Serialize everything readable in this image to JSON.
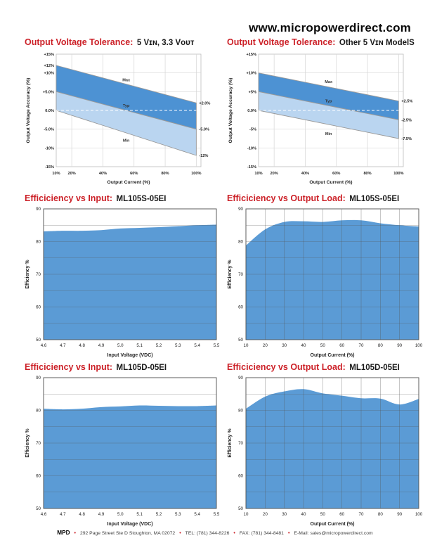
{
  "header": {
    "website": "www.micropowerdirect.com"
  },
  "colors": {
    "accent_red": "#cc2128",
    "band_upper": "#4d92d3",
    "band_lower": "#bad5f0",
    "efficiency_fill": "#5b9bd5",
    "grid_light": "#d6d6d6",
    "band_edge": "#999999"
  },
  "chart_data": [
    {
      "id": "tolerance-5vin-3v3out",
      "type": "area",
      "kind": "tolerance-band",
      "title_accent": "Output Voltage Tolerance:",
      "title_rest": "5 Vɪɴ, 3.3 Vᴏᴜᴛ",
      "xlabel": "Output Current (%)",
      "ylabel": "Output Voltage Accuracy (%)",
      "xlim": [
        10,
        103
      ],
      "ylim": [
        -15,
        15
      ],
      "xticks": [
        {
          "v": 10,
          "label": "10%"
        },
        {
          "v": 20,
          "label": "20%"
        },
        {
          "v": 40,
          "label": "40%"
        },
        {
          "v": 60,
          "label": "60%"
        },
        {
          "v": 80,
          "label": "80%"
        },
        {
          "v": 100,
          "label": "100%"
        }
      ],
      "yticks": [
        {
          "v": 15,
          "label": "+15%",
          "grid": false
        },
        {
          "v": 12,
          "label": "+12%",
          "grid": false
        },
        {
          "v": 10,
          "label": "+10%",
          "grid": true
        },
        {
          "v": 5,
          "label": "+5.0%",
          "grid": true
        },
        {
          "v": 0,
          "label": "0.0%",
          "grid": false
        },
        {
          "v": -5,
          "label": "-5.0%",
          "grid": true
        },
        {
          "v": -10,
          "label": "-10%",
          "grid": true
        },
        {
          "v": -15,
          "label": "-15%",
          "grid": false
        }
      ],
      "zero_line_dashed": true,
      "series": [
        {
          "name": "Max",
          "x": [
            10,
            100
          ],
          "values": [
            12,
            2
          ],
          "end_label": "+2.0%",
          "name_label_at": {
            "x": 55,
            "y": 7.8
          }
        },
        {
          "name": "Typ",
          "x": [
            10,
            100
          ],
          "values": [
            5,
            -5
          ],
          "end_label": "-5.0%",
          "name_label_at": {
            "x": 55,
            "y": 0.9
          }
        },
        {
          "name": "Min",
          "x": [
            10,
            100
          ],
          "values": [
            0,
            -12
          ],
          "end_label": "-12%",
          "name_label_at": {
            "x": 55,
            "y": -8.3
          }
        }
      ]
    },
    {
      "id": "tolerance-other-5vin",
      "type": "area",
      "kind": "tolerance-band",
      "title_accent": "Output Voltage Tolerance:",
      "title_rest": "Other 5 Vɪɴ ModelS",
      "xlabel": "Output Current (%)",
      "ylabel": "Output Voltage Accuracy (%)",
      "xlim": [
        10,
        103
      ],
      "ylim": [
        -15,
        15
      ],
      "xticks": [
        {
          "v": 10,
          "label": "10%"
        },
        {
          "v": 20,
          "label": "20%"
        },
        {
          "v": 40,
          "label": "40%"
        },
        {
          "v": 60,
          "label": "60%"
        },
        {
          "v": 80,
          "label": "80%"
        },
        {
          "v": 100,
          "label": "100%"
        }
      ],
      "yticks": [
        {
          "v": 15,
          "label": "+15%",
          "grid": false
        },
        {
          "v": 10,
          "label": "+10%",
          "grid": true
        },
        {
          "v": 5,
          "label": "+5%",
          "grid": true
        },
        {
          "v": 0,
          "label": "0.0%",
          "grid": false
        },
        {
          "v": -5,
          "label": "-5%",
          "grid": true
        },
        {
          "v": -10,
          "label": "-10%",
          "grid": true
        },
        {
          "v": -15,
          "label": "-15%",
          "grid": false
        }
      ],
      "zero_line_dashed": true,
      "series": [
        {
          "name": "Max",
          "x": [
            10,
            100
          ],
          "values": [
            10,
            2.5
          ],
          "end_label": "+2.5%",
          "name_label_at": {
            "x": 55,
            "y": 7.3
          }
        },
        {
          "name": "Typ",
          "x": [
            10,
            100
          ],
          "values": [
            5,
            -2.5
          ],
          "end_label": "-2.5%",
          "name_label_at": {
            "x": 55,
            "y": 2.2
          }
        },
        {
          "name": "Min",
          "x": [
            10,
            100
          ],
          "values": [
            0,
            -7.5
          ],
          "end_label": "-7.5%",
          "name_label_at": {
            "x": 55,
            "y": -6.6
          }
        }
      ]
    },
    {
      "id": "efficiency-vs-input-ml105s-05ei",
      "type": "area",
      "kind": "efficiency",
      "title_accent": "Efficiciency vs Input:",
      "title_rest": "ML105S-05EI",
      "xlabel": "Input Voltage (VDC)",
      "ylabel": "Efficiency %",
      "xtick_labels": [
        "4.6",
        "4.7",
        "4.8",
        "4.9",
        "5.0",
        "5.1",
        "5.2",
        "5.3",
        "5.4",
        "5.5"
      ],
      "values": [
        83.1,
        83.3,
        83.3,
        83.5,
        84.0,
        84.2,
        84.4,
        84.7,
        85.0,
        85.2
      ],
      "ylim": [
        50,
        90
      ],
      "ytick_labels": [
        "50",
        "60",
        "70",
        "80",
        "90"
      ],
      "grid_y_step": 5,
      "vertical_grid": false
    },
    {
      "id": "efficiency-vs-output-load-ml105s-05ei",
      "type": "area",
      "kind": "efficiency",
      "title_accent": "Efficiciency vs Output Load:",
      "title_rest": "ML105S-05EI",
      "xlabel": "Output Current (%)",
      "ylabel": "Efficiency %",
      "xtick_labels": [
        "10",
        "20",
        "30",
        "40",
        "50",
        "60",
        "70",
        "80",
        "90",
        "100"
      ],
      "values": [
        78.8,
        83.7,
        86.0,
        86.2,
        86.0,
        86.5,
        86.5,
        85.6,
        85.0,
        84.6
      ],
      "ylim": [
        50,
        90
      ],
      "ytick_labels": [
        "50",
        "60",
        "70",
        "80",
        "90"
      ],
      "grid_y_step": 5,
      "vertical_grid": true
    },
    {
      "id": "efficiency-vs-input-ml105d-05ei",
      "type": "area",
      "kind": "efficiency",
      "title_accent": "Efficiciency vs Input:",
      "title_rest": "ML105D-05EI",
      "xlabel": "Input Voltage (VDC)",
      "ylabel": "Efficiency %",
      "xtick_labels": [
        "4.6",
        "4.7",
        "4.8",
        "4.9",
        "5.0",
        "5.1",
        "5.2",
        "5.3",
        "5.4",
        "5.5"
      ],
      "values": [
        80.5,
        80.3,
        80.5,
        81.0,
        81.2,
        81.5,
        81.4,
        81.3,
        81.3,
        81.5
      ],
      "ylim": [
        50,
        90
      ],
      "ytick_labels": [
        "50",
        "60",
        "70",
        "80",
        "90"
      ],
      "grid_y_step": 5,
      "vertical_grid": false
    },
    {
      "id": "efficiency-vs-output-load-ml105d-05ei",
      "type": "area",
      "kind": "efficiency",
      "title_accent": "Efficiciency vs Output Load:",
      "title_rest": "ML105D-05EI",
      "xlabel": "Output Current (%)",
      "ylabel": "Efficiency %",
      "xtick_labels": [
        "10",
        "20",
        "30",
        "40",
        "50",
        "60",
        "70",
        "80",
        "90",
        "100"
      ],
      "values": [
        80.5,
        84.2,
        85.8,
        86.5,
        85.2,
        84.5,
        83.7,
        83.6,
        81.8,
        83.5
      ],
      "ylim": [
        50,
        90
      ],
      "ytick_labels": [
        "50",
        "60",
        "70",
        "80",
        "90"
      ],
      "grid_y_step": 5,
      "vertical_grid": true
    }
  ],
  "footer": {
    "brand": "MPD",
    "bullet": "•",
    "items": [
      "292 Page Street Ste D Stoughton, MA 02072",
      "TEL: (781) 344-8226",
      "FAX: (781) 344-8481",
      "E-Mail: sales@micropowerdirect.com"
    ]
  }
}
